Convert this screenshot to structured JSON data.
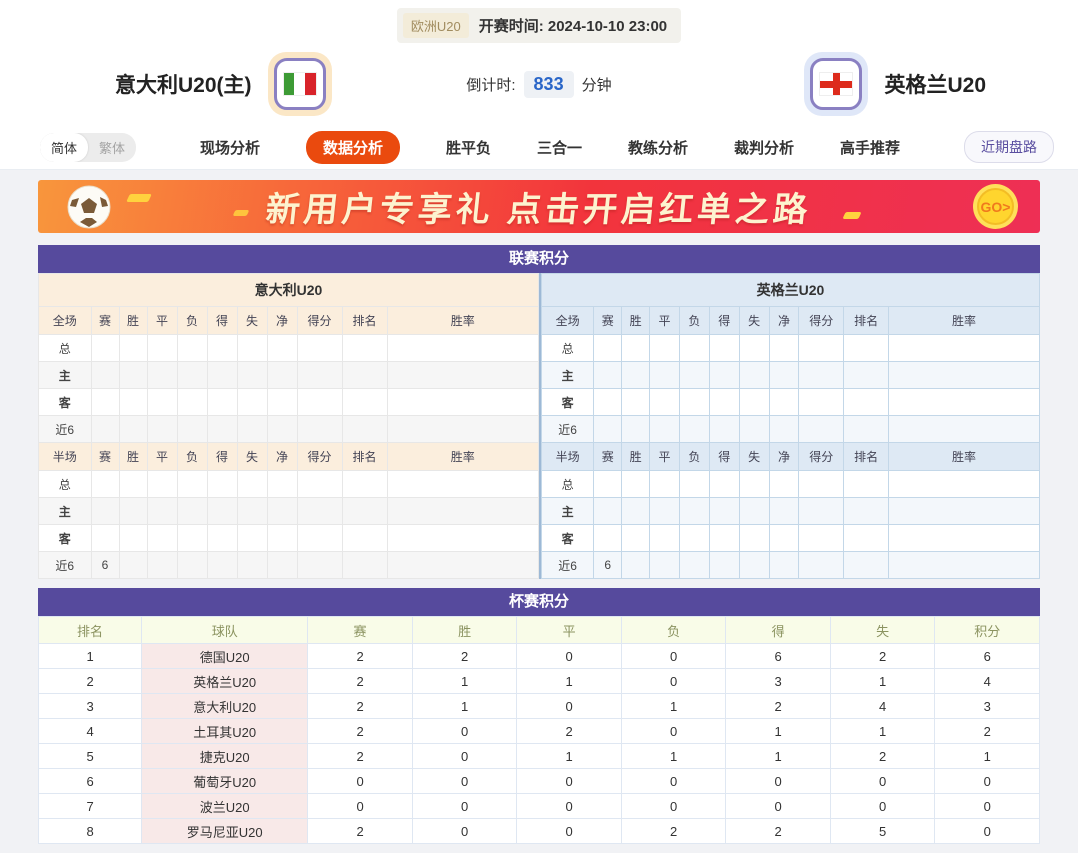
{
  "colors": {
    "accent_orange": "#EA4A0E",
    "panel_purple": "#564A9D",
    "home_red": "#E12B1F",
    "away_blue": "#1A16D9",
    "countdown_blue": "#2A66C8"
  },
  "header": {
    "league_badge": "欧洲U20",
    "kickoff_text": "开赛时间: 2024-10-10 23:00",
    "home_team": "意大利U20(主)",
    "away_team": "英格兰U20",
    "countdown_label": "倒计时:",
    "countdown_value": "833",
    "countdown_unit": "分钟"
  },
  "nav": {
    "lang_simplified": "简体",
    "lang_traditional": "繁体",
    "tabs": [
      {
        "label": "现场分析",
        "active": false
      },
      {
        "label": "数据分析",
        "active": true
      },
      {
        "label": "胜平负",
        "active": false
      },
      {
        "label": "三合一",
        "active": false
      },
      {
        "label": "教练分析",
        "active": false
      },
      {
        "label": "裁判分析",
        "active": false
      },
      {
        "label": "高手推荐",
        "active": false
      }
    ],
    "recent_button": "近期盘路"
  },
  "banner": {
    "text": "新用户专享礼  点击开启红单之路",
    "go_label": "GO>"
  },
  "league_table": {
    "title": "联赛积分",
    "sides": [
      {
        "team": "意大利U20",
        "theme": "home",
        "sections": [
          {
            "header": [
              "全场",
              "赛",
              "胜",
              "平",
              "负",
              "得",
              "失",
              "净",
              "得分",
              "排名",
              "胜率"
            ],
            "rows": [
              {
                "label": "总",
                "type": "total",
                "values": [
                  "",
                  "",
                  "",
                  "",
                  "",
                  "",
                  "",
                  "",
                  "",
                  ""
                ]
              },
              {
                "label": "主",
                "type": "home",
                "values": [
                  "",
                  "",
                  "",
                  "",
                  "",
                  "",
                  "",
                  "",
                  "",
                  ""
                ]
              },
              {
                "label": "客",
                "type": "away",
                "values": [
                  "",
                  "",
                  "",
                  "",
                  "",
                  "",
                  "",
                  "",
                  "",
                  ""
                ]
              },
              {
                "label": "近6",
                "type": "recent",
                "values": [
                  "",
                  "",
                  "",
                  "",
                  "",
                  "",
                  "",
                  "",
                  "",
                  ""
                ]
              }
            ]
          },
          {
            "header": [
              "半场",
              "赛",
              "胜",
              "平",
              "负",
              "得",
              "失",
              "净",
              "得分",
              "排名",
              "胜率"
            ],
            "rows": [
              {
                "label": "总",
                "type": "total",
                "values": [
                  "",
                  "",
                  "",
                  "",
                  "",
                  "",
                  "",
                  "",
                  "",
                  ""
                ]
              },
              {
                "label": "主",
                "type": "home",
                "values": [
                  "",
                  "",
                  "",
                  "",
                  "",
                  "",
                  "",
                  "",
                  "",
                  ""
                ]
              },
              {
                "label": "客",
                "type": "away",
                "values": [
                  "",
                  "",
                  "",
                  "",
                  "",
                  "",
                  "",
                  "",
                  "",
                  ""
                ]
              },
              {
                "label": "近6",
                "type": "recent",
                "values": [
                  "6",
                  "",
                  "",
                  "",
                  "",
                  "",
                  "",
                  "",
                  "",
                  ""
                ]
              }
            ]
          }
        ]
      },
      {
        "team": "英格兰U20",
        "theme": "away",
        "sections": [
          {
            "header": [
              "全场",
              "赛",
              "胜",
              "平",
              "负",
              "得",
              "失",
              "净",
              "得分",
              "排名",
              "胜率"
            ],
            "rows": [
              {
                "label": "总",
                "type": "total",
                "values": [
                  "",
                  "",
                  "",
                  "",
                  "",
                  "",
                  "",
                  "",
                  "",
                  ""
                ]
              },
              {
                "label": "主",
                "type": "home",
                "values": [
                  "",
                  "",
                  "",
                  "",
                  "",
                  "",
                  "",
                  "",
                  "",
                  ""
                ]
              },
              {
                "label": "客",
                "type": "away",
                "values": [
                  "",
                  "",
                  "",
                  "",
                  "",
                  "",
                  "",
                  "",
                  "",
                  ""
                ]
              },
              {
                "label": "近6",
                "type": "recent",
                "values": [
                  "",
                  "",
                  "",
                  "",
                  "",
                  "",
                  "",
                  "",
                  "",
                  ""
                ]
              }
            ]
          },
          {
            "header": [
              "半场",
              "赛",
              "胜",
              "平",
              "负",
              "得",
              "失",
              "净",
              "得分",
              "排名",
              "胜率"
            ],
            "rows": [
              {
                "label": "总",
                "type": "total",
                "values": [
                  "",
                  "",
                  "",
                  "",
                  "",
                  "",
                  "",
                  "",
                  "",
                  ""
                ]
              },
              {
                "label": "主",
                "type": "home",
                "values": [
                  "",
                  "",
                  "",
                  "",
                  "",
                  "",
                  "",
                  "",
                  "",
                  ""
                ]
              },
              {
                "label": "客",
                "type": "away",
                "values": [
                  "",
                  "",
                  "",
                  "",
                  "",
                  "",
                  "",
                  "",
                  "",
                  ""
                ]
              },
              {
                "label": "近6",
                "type": "recent",
                "values": [
                  "6",
                  "",
                  "",
                  "",
                  "",
                  "",
                  "",
                  "",
                  "",
                  ""
                ]
              }
            ]
          }
        ]
      }
    ]
  },
  "cup_table": {
    "title": "杯赛积分",
    "columns": [
      "排名",
      "球队",
      "赛",
      "胜",
      "平",
      "负",
      "得",
      "失",
      "积分"
    ],
    "rows": [
      {
        "rank": "1",
        "team": "德国U20",
        "values": [
          "2",
          "2",
          "0",
          "0",
          "6",
          "2",
          "6"
        ]
      },
      {
        "rank": "2",
        "team": "英格兰U20",
        "values": [
          "2",
          "1",
          "1",
          "0",
          "3",
          "1",
          "4"
        ]
      },
      {
        "rank": "3",
        "team": "意大利U20",
        "values": [
          "2",
          "1",
          "0",
          "1",
          "2",
          "4",
          "3"
        ]
      },
      {
        "rank": "4",
        "team": "土耳其U20",
        "values": [
          "2",
          "0",
          "2",
          "0",
          "1",
          "1",
          "2"
        ]
      },
      {
        "rank": "5",
        "team": "捷克U20",
        "values": [
          "2",
          "0",
          "1",
          "1",
          "1",
          "2",
          "1"
        ]
      },
      {
        "rank": "6",
        "team": "葡萄牙U20",
        "values": [
          "0",
          "0",
          "0",
          "0",
          "0",
          "0",
          "0"
        ]
      },
      {
        "rank": "7",
        "team": "波兰U20",
        "values": [
          "0",
          "0",
          "0",
          "0",
          "0",
          "0",
          "0"
        ]
      },
      {
        "rank": "8",
        "team": "罗马尼亚U20",
        "values": [
          "2",
          "0",
          "0",
          "2",
          "2",
          "5",
          "0"
        ]
      }
    ]
  }
}
